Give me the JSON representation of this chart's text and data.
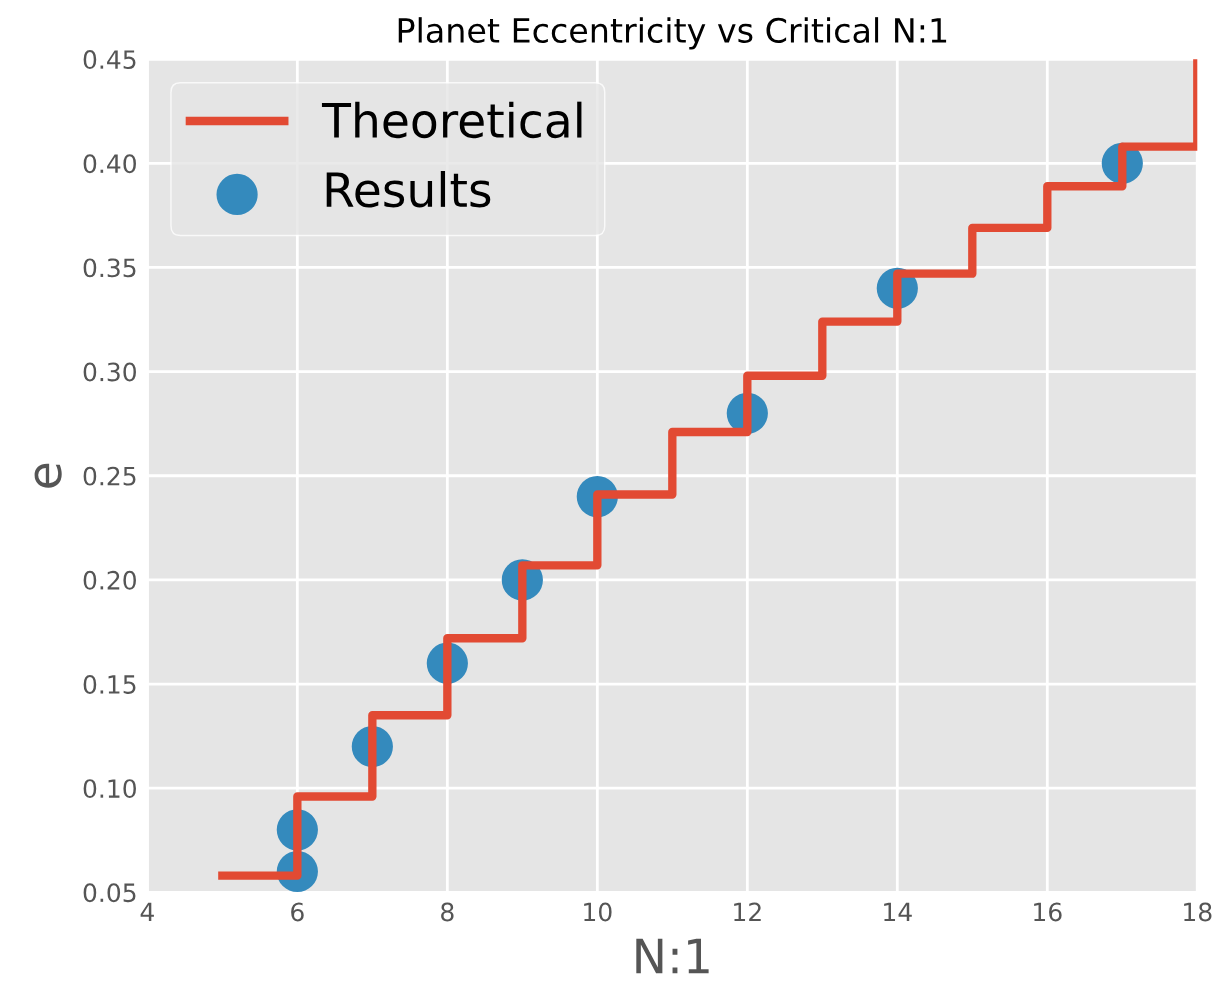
{
  "chart_data": {
    "type": "line",
    "title": "Planet Eccentricity vs Critical N:1",
    "xlabel": "N:1",
    "ylabel": "e",
    "xlim": [
      4,
      18
    ],
    "xticks": [
      4,
      6,
      8,
      10,
      12,
      14,
      16,
      18
    ],
    "ylim": [
      0.05,
      0.45
    ],
    "yticks": [
      0.05,
      {
        "value": 0.1,
        "label": "0.10"
      },
      0.15,
      {
        "value": 0.2,
        "label": "0.20"
      },
      0.25,
      {
        "value": 0.3,
        "label": "0.30"
      },
      0.35,
      {
        "value": 0.4,
        "label": "0.40"
      },
      0.45
    ],
    "grid": true,
    "legend": "top left",
    "series": [
      {
        "name": "Theoretical",
        "type": "step",
        "color": "#e24a33",
        "line_style": "solid",
        "x": [
          5,
          6,
          7,
          8,
          9,
          10,
          11,
          12,
          13,
          14,
          15,
          16,
          17,
          18
        ],
        "values": [
          0.058,
          0.096,
          0.135,
          0.172,
          0.207,
          0.241,
          0.271,
          0.298,
          0.324,
          0.347,
          0.369,
          0.389,
          0.408,
          0.45
        ]
      },
      {
        "name": "Results",
        "type": "scatter",
        "color": "#348abd",
        "marker": "circle",
        "x": [
          6,
          6,
          7,
          8,
          9,
          10,
          12,
          14,
          17
        ],
        "values": [
          0.06,
          0.08,
          0.12,
          0.16,
          0.2,
          0.24,
          0.28,
          0.34,
          0.4
        ]
      }
    ]
  }
}
